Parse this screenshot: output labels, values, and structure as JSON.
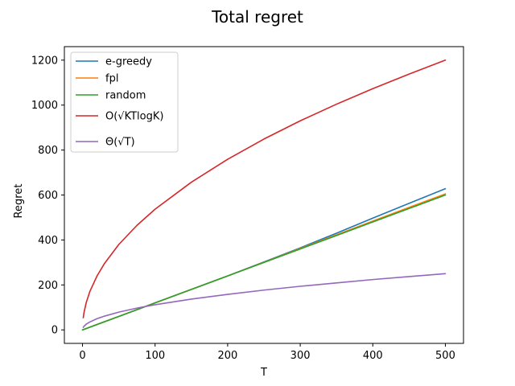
{
  "chart_data": {
    "type": "line",
    "title": "Total regret",
    "xlabel": "T",
    "ylabel": "Regret",
    "xlim": [
      -25,
      525
    ],
    "ylim": [
      -60,
      1260
    ],
    "xticks": [
      0,
      100,
      200,
      300,
      400,
      500
    ],
    "yticks": [
      0,
      200,
      400,
      600,
      800,
      1000,
      1200
    ],
    "xtick_labels": [
      "0",
      "100",
      "200",
      "300",
      "400",
      "500"
    ],
    "ytick_labels": [
      "0",
      "200",
      "400",
      "600",
      "800",
      "1000",
      "1200"
    ],
    "grid": false,
    "legend_position": "top-left",
    "series": [
      {
        "name": "e-greedy",
        "color": "#1f77b4",
        "x": [
          0,
          50,
          100,
          150,
          200,
          250,
          300,
          350,
          400,
          450,
          500
        ],
        "y": [
          0,
          60,
          120,
          180,
          240,
          302,
          365,
          430,
          497,
          563,
          628
        ]
      },
      {
        "name": "fpl",
        "color": "#ff7f0e",
        "x": [
          0,
          50,
          100,
          150,
          200,
          250,
          300,
          350,
          400,
          450,
          500
        ],
        "y": [
          0,
          60,
          120,
          180,
          240,
          301,
          362,
          423,
          484,
          545,
          605
        ]
      },
      {
        "name": "random",
        "color": "#2ca02c",
        "x": [
          0,
          50,
          100,
          150,
          200,
          250,
          300,
          350,
          400,
          450,
          500
        ],
        "y": [
          0,
          60,
          120,
          180,
          240,
          300,
          360,
          420,
          480,
          540,
          600
        ]
      },
      {
        "name": "O(√KTlogK)",
        "color": "#d62728",
        "x": [
          1,
          2,
          5,
          10,
          20,
          30,
          50,
          75,
          100,
          150,
          200,
          250,
          300,
          350,
          400,
          450,
          500
        ],
        "y": [
          54,
          76,
          120,
          170,
          240,
          294,
          380,
          465,
          537,
          657,
          759,
          849,
          930,
          1004,
          1073,
          1138,
          1200
        ]
      },
      {
        "name": "Θ(√T)",
        "color": "#9467bd",
        "x": [
          1,
          2,
          5,
          10,
          20,
          30,
          50,
          75,
          100,
          150,
          200,
          250,
          300,
          350,
          400,
          450,
          500
        ],
        "y": [
          11,
          16,
          25,
          35,
          50,
          61,
          79,
          97,
          112,
          137,
          158,
          177,
          194,
          209,
          224,
          237,
          250
        ]
      }
    ]
  }
}
